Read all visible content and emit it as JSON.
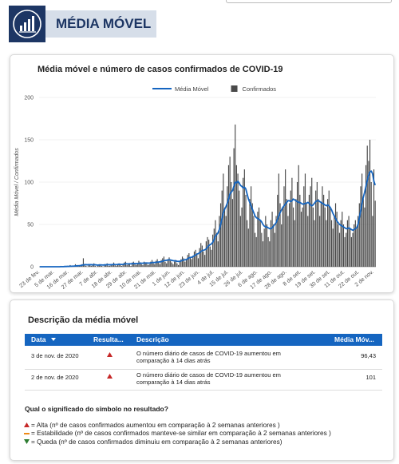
{
  "header": {
    "title": "MÉDIA MÓVEL"
  },
  "chart_data": {
    "type": "combo",
    "title": "Média móvel e número de casos confirmados de COVID-19",
    "ylabel": "Média Móvel / Confirmados",
    "categories": [
      "23 de fev.",
      null,
      null,
      null,
      null,
      null,
      null,
      null,
      null,
      null,
      null,
      "5 de mar.",
      null,
      null,
      null,
      null,
      null,
      null,
      null,
      null,
      null,
      null,
      "16 de mar.",
      null,
      null,
      null,
      null,
      null,
      null,
      null,
      null,
      null,
      null,
      "27 de mar.",
      null,
      null,
      null,
      null,
      null,
      null,
      null,
      null,
      null,
      null,
      "7 de abr.",
      null,
      null,
      null,
      null,
      null,
      null,
      null,
      null,
      null,
      null,
      "18 de abr.",
      null,
      null,
      null,
      null,
      null,
      null,
      null,
      null,
      null,
      null,
      "29 de abr.",
      null,
      null,
      null,
      null,
      null,
      null,
      null,
      null,
      null,
      null,
      "10 de mai.",
      null,
      null,
      null,
      null,
      null,
      null,
      null,
      null,
      null,
      null,
      "21 de mai.",
      null,
      null,
      null,
      null,
      null,
      null,
      null,
      null,
      null,
      null,
      "1 de jun.",
      null,
      null,
      null,
      null,
      null,
      null,
      null,
      null,
      null,
      null,
      "12 de jun.",
      null,
      null,
      null,
      null,
      null,
      null,
      null,
      null,
      null,
      null,
      "23 de jun.",
      null,
      null,
      null,
      null,
      null,
      null,
      null,
      null,
      null,
      null,
      "4 de jul.",
      null,
      null,
      null,
      null,
      null,
      null,
      null,
      null,
      null,
      null,
      "15 de jul.",
      null,
      null,
      null,
      null,
      null,
      null,
      null,
      null,
      null,
      null,
      "26 de jul.",
      null,
      null,
      null,
      null,
      null,
      null,
      null,
      null,
      null,
      null,
      "6 de ago.",
      null,
      null,
      null,
      null,
      null,
      null,
      null,
      null,
      null,
      null,
      "17 de ago.",
      null,
      null,
      null,
      null,
      null,
      null,
      null,
      null,
      null,
      null,
      "28 de ago.",
      null,
      null,
      null,
      null,
      null,
      null,
      null,
      null,
      null,
      null,
      "8 de set.",
      null,
      null,
      null,
      null,
      null,
      null,
      null,
      null,
      null,
      null,
      "19 de set.",
      null,
      null,
      null,
      null,
      null,
      null,
      null,
      null,
      null,
      null,
      "30 de set.",
      null,
      null,
      null,
      null,
      null,
      null,
      null,
      null,
      null,
      null,
      "11 de out.",
      null,
      null,
      null,
      null,
      null,
      null,
      null,
      null,
      null,
      null,
      "22 de out.",
      null,
      null,
      null,
      null,
      null,
      null,
      null,
      null,
      null,
      null,
      "2 de nov.",
      null
    ],
    "series": [
      {
        "name": "Média Móvel",
        "type": "line",
        "color": "#1565c0",
        "values": [
          0,
          0,
          0,
          0,
          0,
          0,
          0,
          0,
          0,
          0,
          0,
          0,
          0,
          0,
          0,
          0,
          0.1,
          0.1,
          0.1,
          0.3,
          0.3,
          0.4,
          0.4,
          0.6,
          0.6,
          0.7,
          0.7,
          1,
          1,
          1.2,
          1.3,
          1.5,
          1.8,
          2.3,
          2.4,
          2.4,
          2.3,
          2.4,
          2.5,
          2.4,
          2.3,
          2.5,
          2.3,
          2.1,
          1.9,
          2.1,
          2.2,
          2.1,
          2,
          2.2,
          2.3,
          2.5,
          2.4,
          2.3,
          2.4,
          2.5,
          2.8,
          2.6,
          2.5,
          2.7,
          2.9,
          2.8,
          2.7,
          2.8,
          3.2,
          3.5,
          3.4,
          3.3,
          3.5,
          3.4,
          3.6,
          3.8,
          3.7,
          3.6,
          3.8,
          4,
          4.3,
          4.1,
          4.2,
          4.4,
          4.5,
          4.5,
          4.4,
          4.3,
          4.6,
          5,
          5,
          5,
          5.2,
          5.5,
          5.6,
          5.8,
          6,
          6.5,
          7.2,
          7.4,
          7.6,
          8,
          8.2,
          8,
          7.6,
          7.2,
          7,
          6.8,
          6.5,
          6.3,
          6.5,
          6.8,
          7.5,
          8,
          8.2,
          8.5,
          9.5,
          10.5,
          11,
          11.2,
          12,
          13,
          14,
          15,
          15.5,
          16.5,
          18,
          19,
          19.5,
          20,
          21,
          23,
          25,
          26,
          27,
          29,
          32,
          36,
          38,
          40,
          44,
          50,
          57,
          64,
          68,
          71,
          75,
          80,
          86,
          88,
          90,
          95,
          100,
          99,
          101,
          99,
          96,
          95,
          93,
          94,
          92,
          86,
          80,
          76,
          72,
          68,
          64,
          60,
          58,
          57,
          56,
          55,
          53,
          50,
          48,
          47,
          47,
          46,
          45,
          45,
          46,
          48,
          50,
          52,
          56,
          60,
          64,
          67,
          70,
          72,
          74,
          76,
          78,
          78,
          77,
          78,
          80,
          79,
          78,
          77,
          76,
          76,
          75,
          74,
          74,
          75,
          75,
          76,
          75,
          73,
          72,
          73,
          75,
          77,
          78,
          78,
          77,
          76,
          75,
          74,
          73,
          72,
          73,
          72,
          70,
          67,
          63,
          60,
          57,
          54,
          52,
          50,
          49,
          48,
          47,
          46,
          45,
          45,
          46,
          45,
          44,
          43,
          44,
          45,
          46,
          50,
          58,
          66,
          75,
          82,
          88,
          95,
          102,
          108,
          112,
          113,
          110,
          101,
          96.43
        ]
      },
      {
        "name": "Confirmados",
        "type": "bar",
        "color": "#4a4a4a",
        "values": [
          0,
          0,
          0,
          0,
          0,
          0,
          0,
          0,
          0,
          0,
          0,
          0,
          0,
          0,
          0,
          0,
          1,
          0,
          0,
          1,
          0,
          1,
          0,
          2,
          0,
          1,
          0,
          3,
          1,
          2,
          1,
          2,
          3,
          10,
          2,
          1,
          0,
          2,
          3,
          1,
          2,
          4,
          1,
          0,
          2,
          3,
          2,
          1,
          0,
          3,
          2,
          4,
          1,
          1,
          2,
          3,
          5,
          2,
          1,
          3,
          4,
          2,
          1,
          3,
          5,
          6,
          2,
          3,
          4,
          1,
          5,
          6,
          3,
          2,
          4,
          7,
          5,
          3,
          2,
          6,
          5,
          4,
          2,
          3,
          6,
          8,
          4,
          3,
          7,
          9,
          5,
          3,
          8,
          10,
          12,
          6,
          4,
          9,
          11,
          7,
          5,
          3,
          6,
          8,
          4,
          2,
          7,
          9,
          12,
          10,
          6,
          8,
          14,
          16,
          11,
          9,
          13,
          18,
          20,
          15,
          10,
          22,
          28,
          25,
          18,
          14,
          30,
          35,
          32,
          24,
          20,
          38,
          45,
          55,
          40,
          30,
          60,
          75,
          90,
          110,
          70,
          60,
          95,
          120,
          130,
          100,
          80,
          140,
          168,
          120,
          110,
          90,
          60,
          70,
          105,
          115,
          85,
          55,
          45,
          80,
          95,
          75,
          60,
          40,
          35,
          65,
          70,
          55,
          40,
          30,
          45,
          60,
          50,
          35,
          30,
          55,
          65,
          50,
          40,
          60,
          85,
          110,
          75,
          50,
          70,
          95,
          115,
          80,
          60,
          75,
          90,
          105,
          70,
          55,
          80,
          100,
          120,
          85,
          65,
          70,
          95,
          110,
          75,
          60,
          85,
          95,
          105,
          70,
          55,
          90,
          100,
          80,
          60,
          75,
          95,
          85,
          70,
          55,
          80,
          90,
          70,
          55,
          45,
          60,
          75,
          65,
          50,
          40,
          55,
          65,
          50,
          35,
          40,
          55,
          60,
          45,
          35,
          40,
          50,
          55,
          45,
          60,
          75,
          95,
          110,
          80,
          70,
          120,
          143,
          125,
          150,
          100,
          60,
          115,
          78
        ]
      }
    ],
    "ylim": [
      0,
      200
    ],
    "yticks": [
      0,
      50,
      100,
      150,
      200
    ],
    "grid": true
  },
  "table": {
    "title": "Descrição da média móvel",
    "columns": [
      "Data",
      "Resulta...",
      "Descrição",
      "Média Móv..."
    ],
    "rows": [
      [
        "3 de nov. de 2020",
        "O número diário de casos de COVID-19 aumentou em comparação à 14 dias atrás",
        "96,43"
      ],
      [
        "2 de nov. de 2020",
        "O número diário de casos de COVID-19 aumentou em comparação à 14 dias atrás",
        "101"
      ]
    ]
  },
  "note": {
    "question": "Qual o significado do símbolo no resultado?",
    "items": [
      "= Alta (nº de casos confirmados aumentou em comparação à 2 semanas anteriores )",
      "= Estabilidade (nº de casos confirmados manteve-se similar em comparação à 2 semanas anteriores )",
      "= Queda (nº de casos confirmados diminuiu em comparação à 2 semanas anteriores)"
    ]
  }
}
